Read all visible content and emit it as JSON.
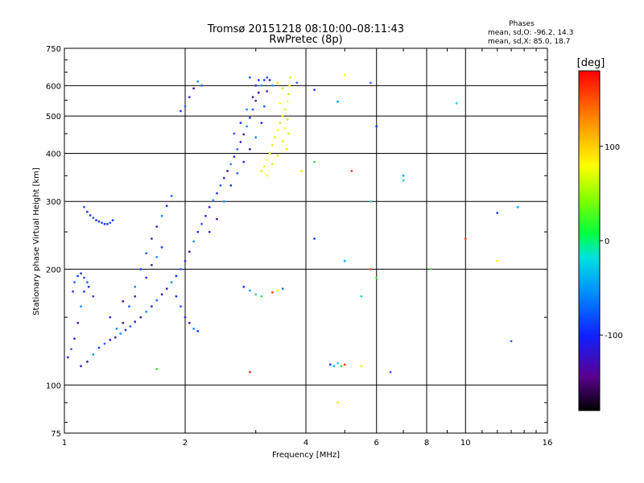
{
  "chart_data": {
    "type": "scatter",
    "title": "Tromsø 20151218 08:10:00–08:11:43",
    "subtitle": "RwPretec (8p)",
    "xlabel": "Frequency [MHz]",
    "ylabel": "Stationary phase Virtual Height [km]",
    "x_scale": "log",
    "y_scale": "log",
    "xlim": [
      1,
      16
    ],
    "ylim": [
      75,
      750
    ],
    "grid": true,
    "x_ticks": [
      1,
      2,
      4,
      6,
      8,
      10,
      16
    ],
    "x_tick_labels": [
      "1",
      "2",
      "4",
      "6",
      "8",
      "10",
      "16"
    ],
    "y_ticks": [
      75,
      100,
      200,
      300,
      400,
      500,
      600,
      750
    ],
    "y_tick_labels": [
      "75",
      "100",
      "200",
      "300",
      "400",
      "500",
      "600",
      "750"
    ],
    "phases_box": {
      "title": "Phases",
      "line_o": "mean, sd,O: -96.2, 14.3",
      "line_x": "mean, sd,X:  85.0, 18.7"
    },
    "colorbar": {
      "label": "[deg]",
      "min": -180,
      "max": 180,
      "ticks": [
        100,
        0,
        -100
      ],
      "tick_labels": [
        "100",
        "0",
        "-100"
      ]
    },
    "series": [
      {
        "trace": "O-mode main trace",
        "points": [
          [
            1.02,
            118
          ],
          [
            1.04,
            124
          ],
          [
            1.06,
            132
          ],
          [
            1.08,
            145
          ],
          [
            1.1,
            160
          ],
          [
            1.12,
            175
          ],
          [
            1.14,
            185
          ],
          [
            1.1,
            112
          ],
          [
            1.14,
            115
          ],
          [
            1.18,
            120
          ],
          [
            1.22,
            125
          ],
          [
            1.26,
            128
          ],
          [
            1.3,
            131
          ],
          [
            1.34,
            133
          ],
          [
            1.38,
            136
          ],
          [
            1.42,
            139
          ],
          [
            1.46,
            142
          ],
          [
            1.5,
            146
          ],
          [
            1.55,
            150
          ],
          [
            1.6,
            155
          ],
          [
            1.65,
            160
          ],
          [
            1.7,
            166
          ],
          [
            1.75,
            172
          ],
          [
            1.8,
            178
          ],
          [
            1.85,
            185
          ],
          [
            1.9,
            192
          ],
          [
            1.95,
            200
          ],
          [
            2.0,
            210
          ],
          [
            2.05,
            222
          ],
          [
            2.1,
            236
          ],
          [
            2.15,
            250
          ],
          [
            2.2,
            262
          ],
          [
            2.25,
            275
          ],
          [
            2.3,
            290
          ],
          [
            2.35,
            302
          ],
          [
            2.4,
            315
          ],
          [
            2.45,
            330
          ],
          [
            2.5,
            345
          ],
          [
            2.55,
            360
          ],
          [
            2.6,
            375
          ],
          [
            2.65,
            392
          ],
          [
            2.7,
            410
          ],
          [
            2.75,
            428
          ],
          [
            2.8,
            448
          ],
          [
            2.85,
            470
          ],
          [
            2.9,
            495
          ],
          [
            2.95,
            520
          ],
          [
            3.0,
            548
          ],
          [
            3.05,
            575
          ],
          [
            3.1,
            600
          ],
          [
            3.15,
            620
          ],
          [
            3.2,
            630
          ],
          [
            1.3,
            150
          ],
          [
            1.4,
            165
          ],
          [
            1.5,
            180
          ],
          [
            1.55,
            200
          ],
          [
            1.6,
            220
          ],
          [
            1.65,
            240
          ],
          [
            1.7,
            258
          ],
          [
            1.75,
            275
          ],
          [
            1.8,
            292
          ],
          [
            1.85,
            310
          ],
          [
            1.6,
            190
          ],
          [
            1.65,
            205
          ],
          [
            1.7,
            215
          ],
          [
            1.75,
            228
          ],
          [
            1.45,
            160
          ],
          [
            1.5,
            170
          ],
          [
            1.4,
            145
          ],
          [
            1.35,
            140
          ],
          [
            1.9,
            170
          ],
          [
            1.95,
            160
          ],
          [
            2.0,
            150
          ],
          [
            2.05,
            145
          ],
          [
            2.1,
            140
          ],
          [
            2.15,
            138
          ],
          [
            2.0,
            530
          ],
          [
            2.05,
            560
          ],
          [
            2.1,
            590
          ],
          [
            2.15,
            615
          ],
          [
            1.95,
            515
          ],
          [
            2.2,
            600
          ],
          [
            2.3,
            250
          ],
          [
            2.4,
            270
          ],
          [
            2.5,
            300
          ],
          [
            2.6,
            330
          ],
          [
            2.7,
            355
          ],
          [
            2.8,
            380
          ],
          [
            2.9,
            410
          ],
          [
            3.0,
            440
          ],
          [
            3.1,
            480
          ],
          [
            3.15,
            530
          ],
          [
            3.2,
            580
          ],
          [
            3.25,
            620
          ],
          [
            3.3,
            600
          ],
          [
            3.05,
            620
          ],
          [
            2.9,
            630
          ],
          [
            3.0,
            600
          ],
          [
            2.95,
            560
          ],
          [
            2.85,
            520
          ],
          [
            2.75,
            480
          ],
          [
            2.65,
            450
          ]
        ]
      },
      {
        "trace": "secondary low-frequency branch",
        "points": [
          [
            1.12,
            290
          ],
          [
            1.14,
            282
          ],
          [
            1.16,
            276
          ],
          [
            1.18,
            272
          ],
          [
            1.2,
            268
          ],
          [
            1.22,
            266
          ],
          [
            1.24,
            264
          ],
          [
            1.26,
            262
          ],
          [
            1.28,
            262
          ],
          [
            1.3,
            264
          ],
          [
            1.32,
            268
          ],
          [
            1.05,
            175
          ],
          [
            1.06,
            185
          ],
          [
            1.08,
            192
          ],
          [
            1.1,
            195
          ],
          [
            1.12,
            190
          ],
          [
            1.15,
            180
          ],
          [
            1.18,
            170
          ]
        ]
      },
      {
        "trace": "X-mode trace",
        "points": [
          [
            3.1,
            360
          ],
          [
            3.15,
            370
          ],
          [
            3.2,
            385
          ],
          [
            3.25,
            400
          ],
          [
            3.3,
            420
          ],
          [
            3.35,
            440
          ],
          [
            3.4,
            460
          ],
          [
            3.45,
            480
          ],
          [
            3.5,
            500
          ],
          [
            3.55,
            520
          ],
          [
            3.6,
            545
          ],
          [
            3.62,
            570
          ],
          [
            3.64,
            600
          ],
          [
            3.66,
            630
          ],
          [
            3.2,
            350
          ],
          [
            3.3,
            375
          ],
          [
            3.4,
            395
          ],
          [
            3.5,
            430
          ],
          [
            3.55,
            465
          ],
          [
            3.6,
            490
          ],
          [
            3.58,
            410
          ],
          [
            3.62,
            450
          ],
          [
            3.45,
            540
          ],
          [
            3.5,
            590
          ],
          [
            3.4,
            610
          ]
        ]
      },
      {
        "trace": "scattered echoes",
        "points": [
          [
            2.8,
            180
          ],
          [
            2.9,
            176
          ],
          [
            3.0,
            172
          ],
          [
            3.1,
            170
          ],
          [
            3.3,
            174
          ],
          [
            3.4,
            176
          ],
          [
            3.5,
            178
          ],
          [
            4.6,
            113
          ],
          [
            4.7,
            112
          ],
          [
            4.8,
            114
          ],
          [
            4.9,
            112
          ],
          [
            5.0,
            113
          ],
          [
            5.5,
            112
          ],
          [
            6.5,
            108
          ],
          [
            4.2,
            240
          ],
          [
            5.0,
            210
          ],
          [
            5.5,
            170
          ],
          [
            6.0,
            190
          ],
          [
            5.8,
            200
          ],
          [
            5.0,
            640
          ],
          [
            5.8,
            610
          ],
          [
            6.0,
            470
          ],
          [
            7.0,
            350
          ],
          [
            7.0,
            340
          ],
          [
            8.2,
            200
          ],
          [
            10.0,
            240
          ],
          [
            12.0,
            210
          ],
          [
            13.0,
            130
          ],
          [
            12.0,
            280
          ],
          [
            13.5,
            290
          ],
          [
            9.5,
            540
          ],
          [
            4.2,
            380
          ],
          [
            5.2,
            360
          ],
          [
            3.9,
            360
          ],
          [
            3.8,
            610
          ],
          [
            4.2,
            585
          ],
          [
            4.8,
            545
          ],
          [
            5.8,
            300
          ],
          [
            1.7,
            110
          ],
          [
            2.9,
            108
          ],
          [
            4.8,
            90
          ]
        ]
      }
    ]
  }
}
